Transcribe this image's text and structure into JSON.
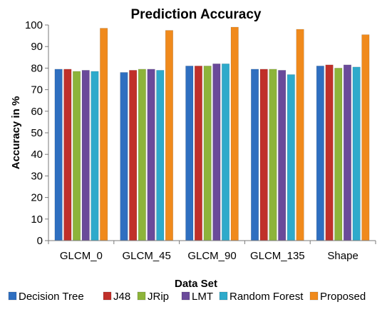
{
  "chart_data": {
    "type": "bar",
    "title": "Prediction  Accuracy",
    "xlabel": "Data Set",
    "ylabel": "Accuracy in %",
    "ylim": [
      0,
      100
    ],
    "yticks": [
      0,
      10,
      20,
      30,
      40,
      50,
      60,
      70,
      80,
      90,
      100
    ],
    "grid": false,
    "legend_position": "bottom",
    "categories": [
      "GLCM_0",
      "GLCM_45",
      "GLCM_90",
      "GLCM_135",
      "Shape"
    ],
    "series": [
      {
        "name": "Decision Tree",
        "color": "#2f6fc0",
        "values": [
          79.5,
          78,
          81,
          79.5,
          81
        ]
      },
      {
        "name": "J48",
        "color": "#c0302a",
        "values": [
          79.5,
          79,
          81,
          79.5,
          81.5
        ]
      },
      {
        "name": "JRip",
        "color": "#8db43a",
        "values": [
          78.5,
          79.5,
          81,
          79.5,
          80
        ]
      },
      {
        "name": "LMT",
        "color": "#6a4a9a",
        "values": [
          79,
          79.5,
          82,
          79,
          81.5
        ]
      },
      {
        "name": "Random Forest",
        "color": "#2eaacb",
        "values": [
          78.5,
          79,
          82,
          77,
          80.5
        ]
      },
      {
        "name": "Proposed",
        "color": "#f08a1c",
        "values": [
          98.5,
          97.5,
          99,
          98,
          95.5
        ]
      }
    ]
  }
}
